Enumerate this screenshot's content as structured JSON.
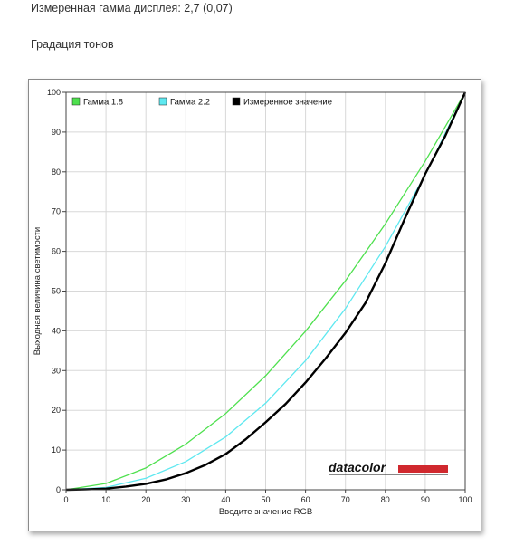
{
  "header": {
    "measured_gamma": "Измеренная гамма дисплея: 2,7 (0,07)",
    "section_title": "Градация тонов"
  },
  "brand": {
    "name": "datacolor",
    "bar_color": "#d0282e"
  },
  "chart_data": {
    "type": "line",
    "title": "",
    "xlabel": "Введите значение RGB",
    "ylabel": "Выходная величина светимости",
    "xlim": [
      0,
      100
    ],
    "ylim": [
      0,
      100
    ],
    "xticks": [
      "0",
      "10",
      "20",
      "30",
      "40",
      "50",
      "60",
      "70",
      "80",
      "90",
      "100"
    ],
    "yticks": [
      "0",
      "10",
      "20",
      "30",
      "40",
      "50",
      "60",
      "70",
      "80",
      "90",
      "100"
    ],
    "grid": true,
    "legend_position": "top-left",
    "series": [
      {
        "name": "Гамма 1.8",
        "color": "#4ee04e",
        "x": [
          0,
          10,
          20,
          30,
          40,
          50,
          60,
          70,
          80,
          90,
          100
        ],
        "y": [
          0,
          1.6,
          5.5,
          11.5,
          19.2,
          28.7,
          39.9,
          52.6,
          66.9,
          82.7,
          100
        ]
      },
      {
        "name": "Гамма 2.2",
        "color": "#5ee8f0",
        "x": [
          0,
          10,
          20,
          30,
          40,
          50,
          60,
          70,
          80,
          90,
          100
        ],
        "y": [
          0,
          0.6,
          2.9,
          7.1,
          13.3,
          21.8,
          32.5,
          45.6,
          61.2,
          79.3,
          100
        ]
      },
      {
        "name": "Измеренное значение",
        "color": "#000000",
        "x": [
          0,
          5,
          10,
          15,
          20,
          25,
          30,
          35,
          40,
          45,
          50,
          55,
          60,
          65,
          70,
          75,
          80,
          85,
          90,
          95,
          100
        ],
        "y": [
          0,
          0.1,
          0.3,
          0.8,
          1.5,
          2.6,
          4.2,
          6.3,
          9,
          12.7,
          17,
          21.6,
          27,
          33,
          39.5,
          47,
          57,
          68.5,
          79.5,
          89,
          100
        ]
      }
    ]
  }
}
